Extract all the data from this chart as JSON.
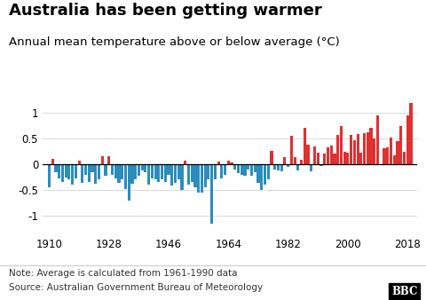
{
  "title": "Australia has been getting warmer",
  "subtitle": "Annual mean temperature above or below average (°C)",
  "note": "Note: Average is calculated from 1961-1990 data",
  "source": "Source: Australian Government Bureau of Meteorology",
  "bbc_logo": "BBC",
  "years": [
    1910,
    1911,
    1912,
    1913,
    1914,
    1915,
    1916,
    1917,
    1918,
    1919,
    1920,
    1921,
    1922,
    1923,
    1924,
    1925,
    1926,
    1927,
    1928,
    1929,
    1930,
    1931,
    1932,
    1933,
    1934,
    1935,
    1936,
    1937,
    1938,
    1939,
    1940,
    1941,
    1942,
    1943,
    1944,
    1945,
    1946,
    1947,
    1948,
    1949,
    1950,
    1951,
    1952,
    1953,
    1954,
    1955,
    1956,
    1957,
    1958,
    1959,
    1960,
    1961,
    1962,
    1963,
    1964,
    1965,
    1966,
    1967,
    1968,
    1969,
    1970,
    1971,
    1972,
    1973,
    1974,
    1975,
    1976,
    1977,
    1978,
    1979,
    1980,
    1981,
    1982,
    1983,
    1984,
    1985,
    1986,
    1987,
    1988,
    1989,
    1990,
    1991,
    1992,
    1993,
    1994,
    1995,
    1996,
    1997,
    1998,
    1999,
    2000,
    2001,
    2002,
    2003,
    2004,
    2005,
    2006,
    2007,
    2008,
    2009,
    2010,
    2011,
    2012,
    2013,
    2014,
    2015,
    2016,
    2017,
    2018,
    2019
  ],
  "values": [
    -0.45,
    0.1,
    -0.16,
    -0.28,
    -0.35,
    -0.25,
    -0.3,
    -0.4,
    -0.28,
    0.07,
    -0.36,
    -0.2,
    -0.35,
    -0.16,
    -0.38,
    -0.3,
    0.15,
    -0.22,
    0.15,
    -0.2,
    -0.28,
    -0.36,
    -0.3,
    -0.48,
    -0.7,
    -0.38,
    -0.3,
    -0.22,
    -0.12,
    -0.16,
    -0.4,
    -0.28,
    -0.3,
    -0.35,
    -0.3,
    -0.35,
    -0.2,
    -0.42,
    -0.36,
    -0.3,
    -0.5,
    0.06,
    -0.4,
    -0.35,
    -0.45,
    -0.55,
    -0.55,
    -0.45,
    -0.3,
    -1.15,
    -0.3,
    0.05,
    -0.28,
    -0.2,
    0.06,
    0.03,
    -0.1,
    -0.18,
    -0.2,
    -0.22,
    -0.1,
    -0.22,
    -0.16,
    -0.36,
    -0.5,
    -0.4,
    -0.3,
    0.26,
    -0.1,
    -0.12,
    -0.14,
    0.13,
    -0.05,
    0.55,
    0.14,
    -0.12,
    0.08,
    0.71,
    0.37,
    -0.14,
    0.34,
    0.22,
    -0.04,
    0.2,
    0.33,
    0.36,
    0.21,
    0.57,
    0.73,
    0.24,
    0.22,
    0.56,
    0.47,
    0.58,
    0.22,
    0.6,
    0.61,
    0.7,
    0.5,
    0.95,
    -0.02,
    0.31,
    0.33,
    0.51,
    0.17,
    0.45,
    0.73,
    0.24,
    0.95,
    1.18
  ],
  "color_positive": "#e03030",
  "color_negative": "#2b8cbe",
  "bg_color": "#ffffff",
  "xlim": [
    1908,
    2021
  ],
  "ylim": [
    -1.35,
    1.55
  ],
  "yticks": [
    -1.0,
    -0.5,
    0.0,
    0.5,
    1.0
  ],
  "ytick_labels": [
    "-1",
    "-0.5",
    "0",
    "0.5",
    "1"
  ],
  "xticks": [
    1910,
    1928,
    1946,
    1964,
    1982,
    2000,
    2018
  ],
  "title_fontsize": 13,
  "subtitle_fontsize": 9.5,
  "note_fontsize": 7.5,
  "source_fontsize": 7.5
}
